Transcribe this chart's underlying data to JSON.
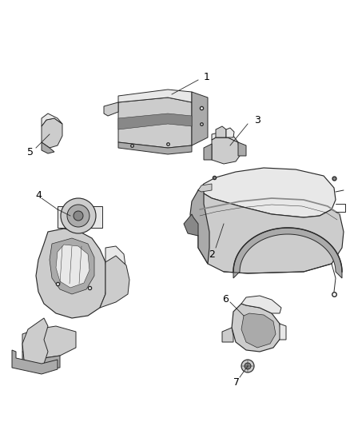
{
  "background_color": "#ffffff",
  "line_color": "#2a2a2a",
  "label_color": "#000000",
  "fill_light": "#e8e8e8",
  "fill_mid": "#cccccc",
  "fill_dark": "#aaaaaa",
  "fill_darkest": "#888888",
  "figsize": [
    4.38,
    5.33
  ],
  "dpi": 100,
  "label_fontsize": 9,
  "lw": 0.7
}
